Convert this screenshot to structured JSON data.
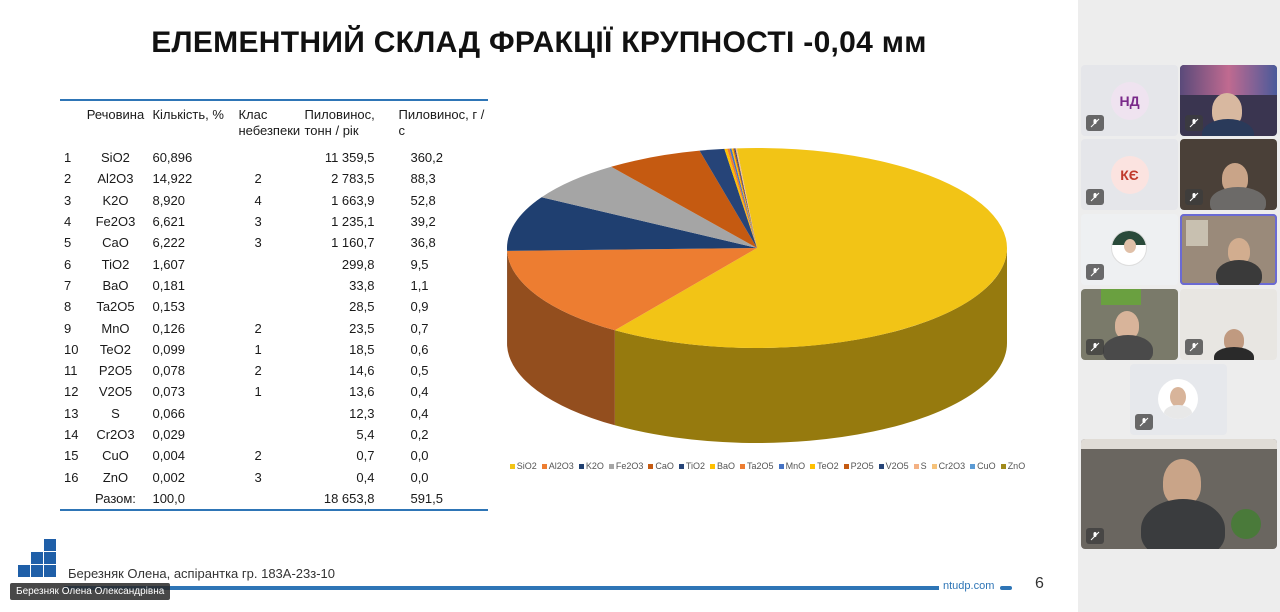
{
  "slide": {
    "title": "ЕЛЕМЕНТНИЙ СКЛАД ФРАКЦІЇ КРУПНОСТІ -0,04 мм",
    "table": {
      "headers": [
        "",
        "Речовина",
        "Кількість, %",
        "Клас небезпеки",
        "Пиловинос, тонн / рік",
        "Пиловинос, г / с"
      ],
      "rows": [
        [
          "1",
          "SiO2",
          "60,896",
          "",
          "11 359,5",
          "360,2"
        ],
        [
          "2",
          "Al2O3",
          "14,922",
          "2",
          "2 783,5",
          "88,3"
        ],
        [
          "3",
          "K2O",
          "8,920",
          "4",
          "1 663,9",
          "52,8"
        ],
        [
          "4",
          "Fe2O3",
          "6,621",
          "3",
          "1 235,1",
          "39,2"
        ],
        [
          "5",
          "CaO",
          "6,222",
          "3",
          "1 160,7",
          "36,8"
        ],
        [
          "6",
          "TiO2",
          "1,607",
          "",
          "299,8",
          "9,5"
        ],
        [
          "7",
          "BaO",
          "0,181",
          "",
          "33,8",
          "1,1"
        ],
        [
          "8",
          "Ta2O5",
          "0,153",
          "",
          "28,5",
          "0,9"
        ],
        [
          "9",
          "MnO",
          "0,126",
          "2",
          "23,5",
          "0,7"
        ],
        [
          "10",
          "TeO2",
          "0,099",
          "1",
          "18,5",
          "0,6"
        ],
        [
          "11",
          "P2O5",
          "0,078",
          "2",
          "14,6",
          "0,5"
        ],
        [
          "12",
          "V2O5",
          "0,073",
          "1",
          "13,6",
          "0,4"
        ],
        [
          "13",
          "S",
          "0,066",
          "",
          "12,3",
          "0,4"
        ],
        [
          "14",
          "Cr2O3",
          "0,029",
          "",
          "5,4",
          "0,2"
        ],
        [
          "15",
          "CuO",
          "0,004",
          "2",
          "0,7",
          "0,0"
        ],
        [
          "16",
          "ZnO",
          "0,002",
          "3",
          "0,4",
          "0,0"
        ]
      ],
      "total": [
        "",
        "Разом:",
        "100,0",
        "",
        "18 653,8",
        "591,5"
      ]
    },
    "author": "Березняк Олена, аспірантка гр. 183А-23з-10",
    "site": "ntudp.com",
    "page_number": "6"
  },
  "chart_data": {
    "type": "pie",
    "categories": [
      "SiO2",
      "Al2O3",
      "K2O",
      "Fe2O3",
      "CaO",
      "TiO2",
      "BaO",
      "Ta2O5",
      "MnO",
      "TeO2",
      "P2O5",
      "V2O5",
      "S",
      "Cr2O3",
      "CuO",
      "ZnO"
    ],
    "values": [
      60.896,
      14.922,
      8.92,
      6.621,
      6.222,
      1.607,
      0.181,
      0.153,
      0.126,
      0.099,
      0.078,
      0.073,
      0.066,
      0.029,
      0.004,
      0.002
    ],
    "colors": [
      "#f2c416",
      "#ed7d31",
      "#1f3f70",
      "#a5a5a5",
      "#c55a11",
      "#264478",
      "#ffc000",
      "#ed7d31",
      "#4472c4",
      "#ffc000",
      "#c55a11",
      "#264478",
      "#f4b183",
      "#f6c27a",
      "#5b9bd5",
      "#a08a1a"
    ],
    "style": "3d",
    "legend_position": "bottom",
    "title": ""
  },
  "meeting": {
    "presenter_name": "Березняк Олена Олександрівна",
    "participants": [
      {
        "initials": "НД",
        "type": "avatar",
        "color": "#7a2a8a",
        "bg": "#efe3f0"
      },
      {
        "initials": "",
        "type": "camera"
      },
      {
        "initials": "КЄ",
        "type": "avatar",
        "color": "#c0392b",
        "bg": "#fbe3e0"
      },
      {
        "initials": "",
        "type": "camera"
      },
      {
        "initials": "",
        "type": "avatar-photo"
      },
      {
        "initials": "",
        "type": "camera"
      },
      {
        "initials": "",
        "type": "camera"
      },
      {
        "initials": "",
        "type": "camera"
      },
      {
        "initials": "",
        "type": "avatar-photo"
      },
      {
        "initials": "",
        "type": "camera"
      }
    ]
  }
}
